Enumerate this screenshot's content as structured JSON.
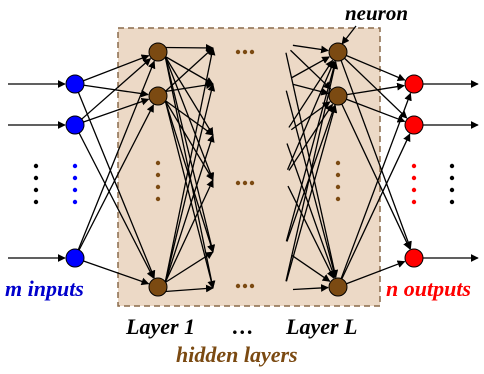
{
  "labels": {
    "neuron": "neuron",
    "inputs": "m inputs",
    "outputs": "n outputs",
    "layer_first": "Layer 1",
    "layer_ellipsis": "…",
    "layer_last": "Layer L",
    "hidden": "hidden layers"
  },
  "colors": {
    "input_node": "#0000ff",
    "output_node": "#ff0000",
    "hidden_node": "#7b4a12",
    "hidden_region": "#ecd9c6",
    "region_border": "#8a6a4a",
    "edge": "#000000",
    "label_blue": "#0000cc",
    "label_red": "#ff0000",
    "label_brown": "#7b4a12"
  }
}
